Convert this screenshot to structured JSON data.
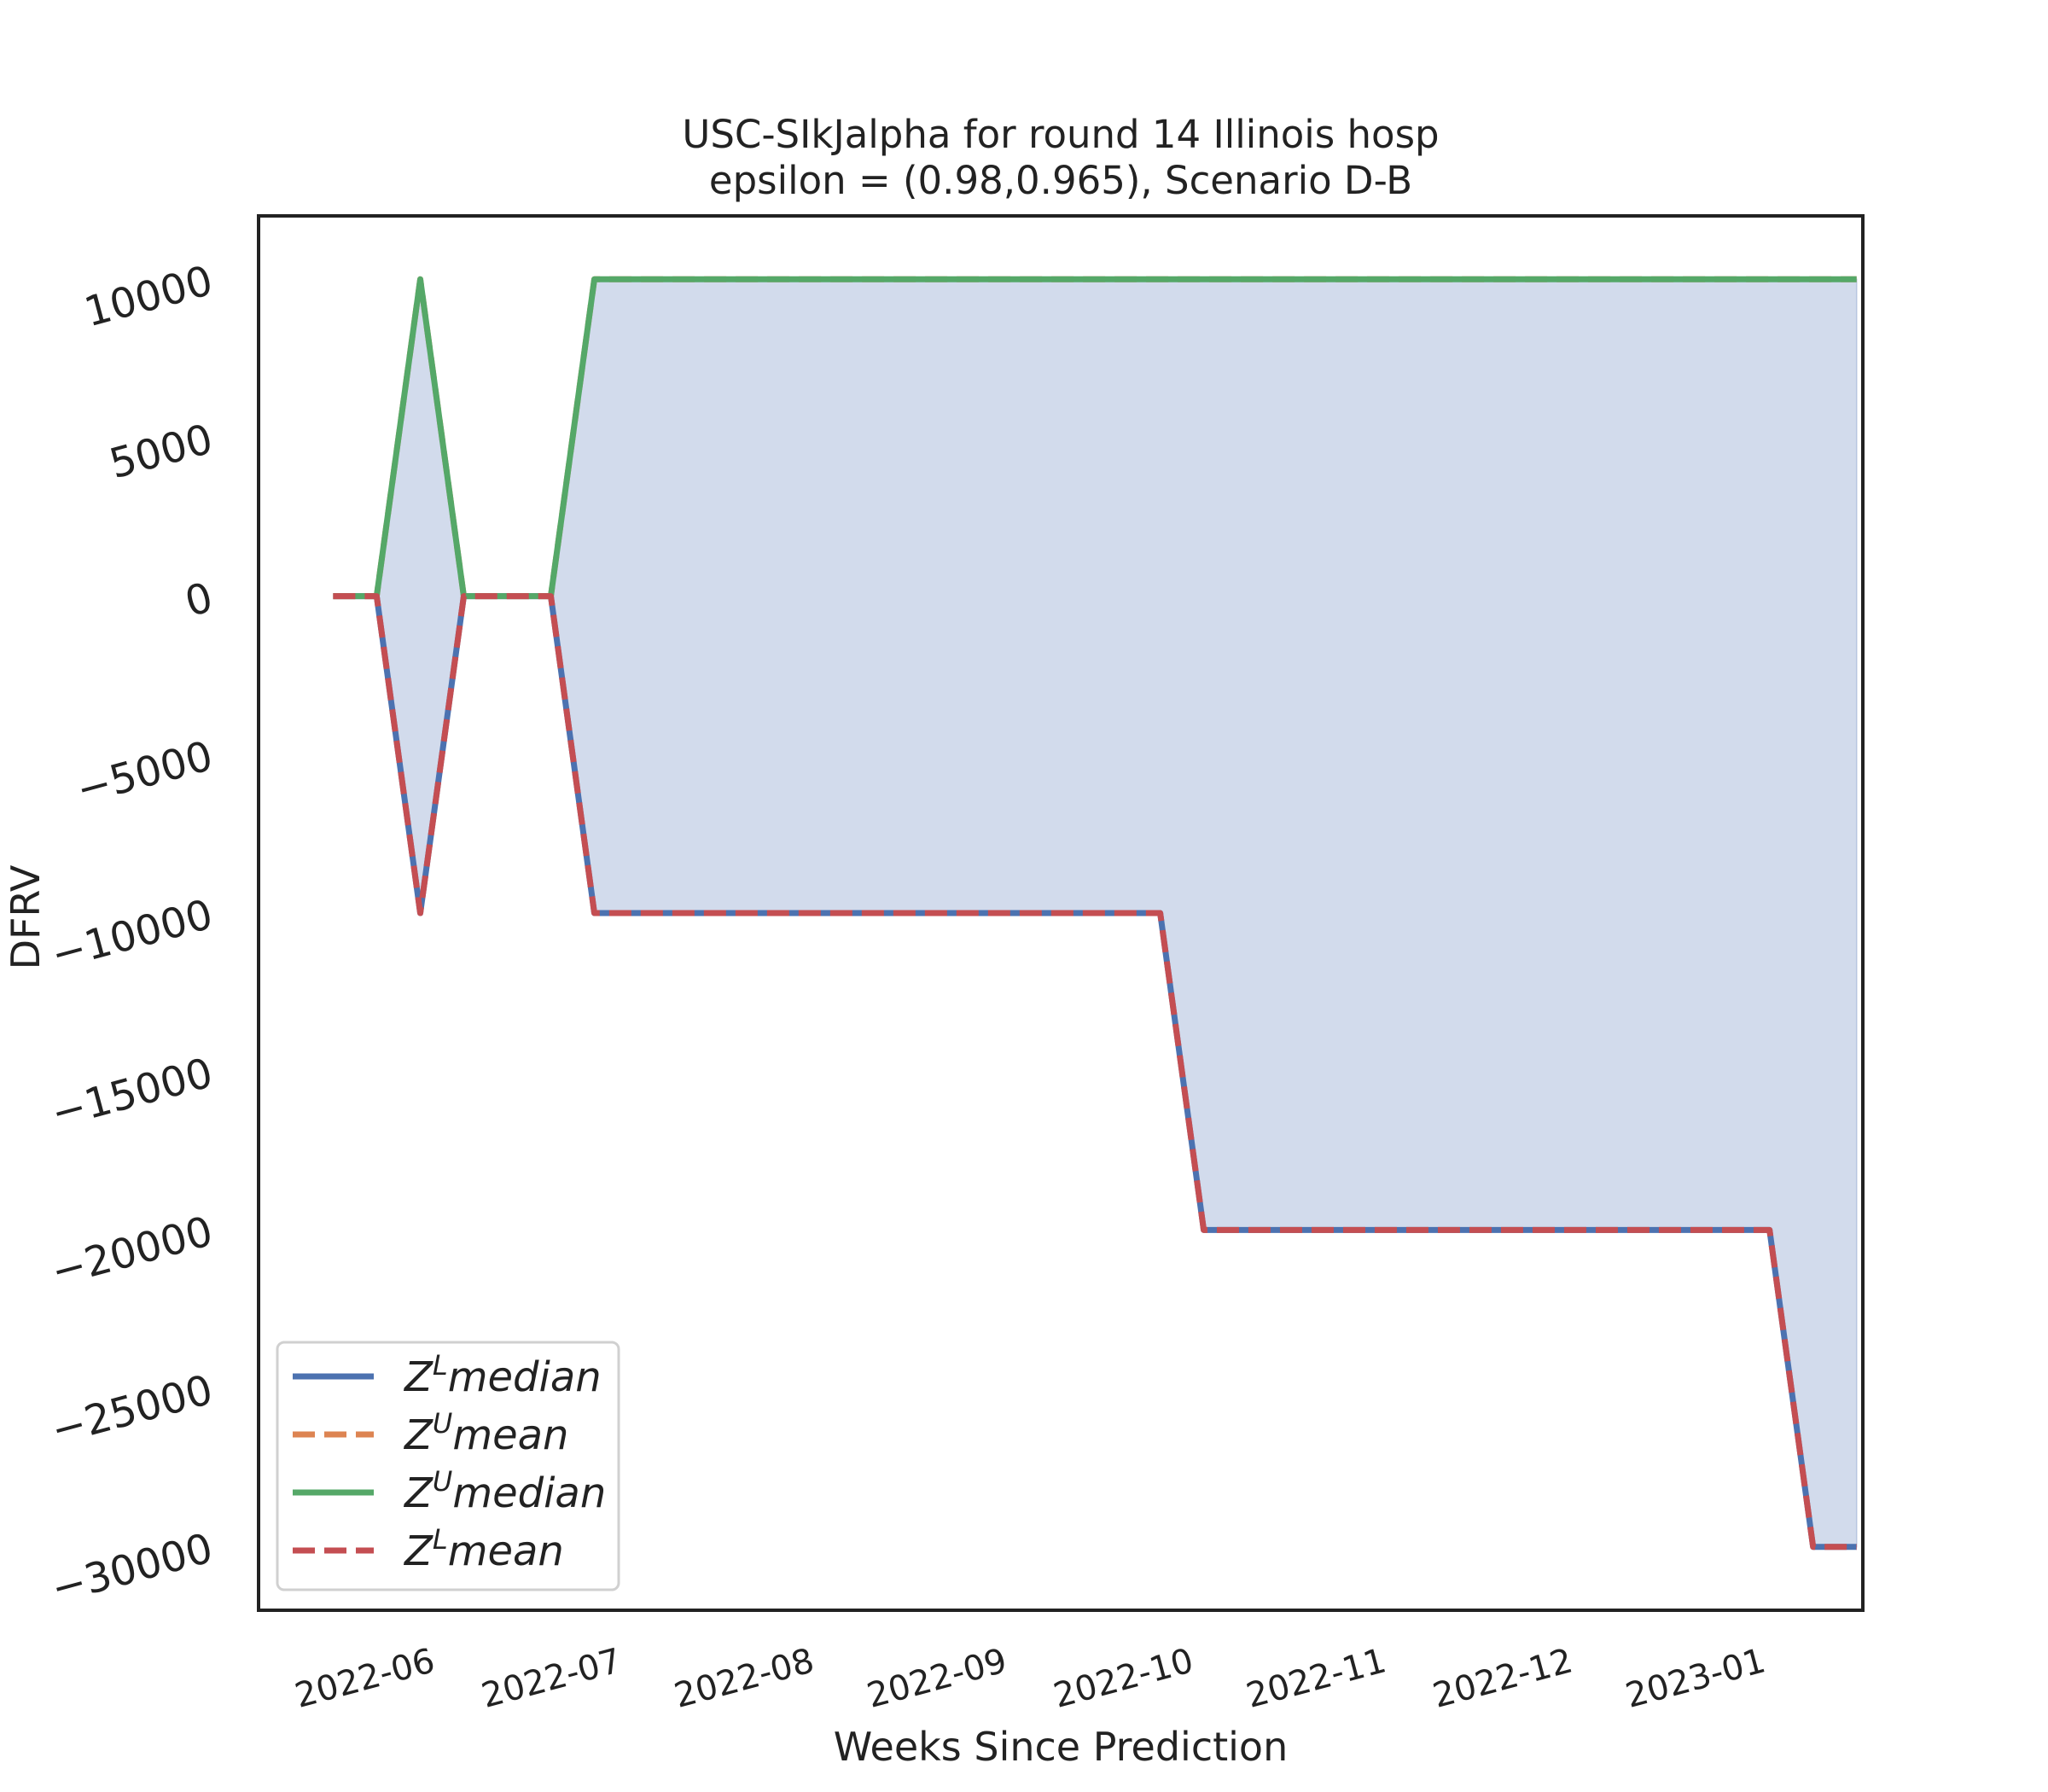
{
  "chart_data": {
    "type": "line",
    "title": "USC-SIkJalpha for round 14 Illinois  hosp",
    "subtitle": "epsilon = (0.98,0.965), Scenario D-B",
    "xlabel": "Weeks Since Prediction",
    "ylabel": "DFRV",
    "xlim": [
      "2022-05-05",
      "2023-01-18"
    ],
    "ylim": [
      -32000,
      12000
    ],
    "grid": false,
    "legend_position": "lower-left",
    "y_ticks": [
      {
        "value": 10000,
        "label": "10000"
      },
      {
        "value": 5000,
        "label": "5000"
      },
      {
        "value": 0,
        "label": "0"
      },
      {
        "value": -5000,
        "label": "−5000"
      },
      {
        "value": -10000,
        "label": "−10000"
      },
      {
        "value": -15000,
        "label": "−15000"
      },
      {
        "value": -20000,
        "label": "−20000"
      },
      {
        "value": -25000,
        "label": "−25000"
      },
      {
        "value": -30000,
        "label": "−30000"
      }
    ],
    "x_ticks": [
      {
        "value": "2022-06-01",
        "label": "2022-06"
      },
      {
        "value": "2022-07-01",
        "label": "2022-07"
      },
      {
        "value": "2022-08-01",
        "label": "2022-08"
      },
      {
        "value": "2022-09-01",
        "label": "2022-09"
      },
      {
        "value": "2022-10-01",
        "label": "2022-10"
      },
      {
        "value": "2022-11-01",
        "label": "2022-11"
      },
      {
        "value": "2022-12-01",
        "label": "2022-12"
      },
      {
        "value": "2023-01-01",
        "label": "2023-01"
      }
    ],
    "x": [
      "2022-05-17",
      "2022-05-24",
      "2022-05-31",
      "2022-06-07",
      "2022-06-14",
      "2022-06-21",
      "2022-06-28",
      "2022-07-05",
      "2022-07-12",
      "2022-07-19",
      "2022-07-26",
      "2022-08-02",
      "2022-08-09",
      "2022-08-16",
      "2022-08-23",
      "2022-08-30",
      "2022-09-06",
      "2022-09-13",
      "2022-09-20",
      "2022-09-27",
      "2022-10-04",
      "2022-10-11",
      "2022-10-18",
      "2022-10-25",
      "2022-11-01",
      "2022-11-08",
      "2022-11-15",
      "2022-11-22",
      "2022-11-29",
      "2022-12-06",
      "2022-12-13",
      "2022-12-20",
      "2022-12-27",
      "2023-01-03",
      "2023-01-10",
      "2023-01-17"
    ],
    "band_fill": "#d2dbec",
    "series": [
      {
        "name": "Z^L median",
        "legend": {
          "base": "Z",
          "sup": "L",
          "rest": "median"
        },
        "color": "#4c72b0",
        "dash": "solid",
        "values": [
          0,
          0,
          -10000,
          0,
          0,
          0,
          -10000,
          -10000,
          -10000,
          -10000,
          -10000,
          -10000,
          -10000,
          -10000,
          -10000,
          -10000,
          -10000,
          -10000,
          -10000,
          -10000,
          -20000,
          -20000,
          -20000,
          -20000,
          -20000,
          -20000,
          -20000,
          -20000,
          -20000,
          -20000,
          -20000,
          -20000,
          -20000,
          -20000,
          -30000,
          -30000
        ]
      },
      {
        "name": "Z^U mean",
        "legend": {
          "base": "Z",
          "sup": "U",
          "rest": "mean"
        },
        "color": "#dd8452",
        "dash": "dashed",
        "values": [
          0,
          0,
          10000,
          0,
          0,
          0,
          10000,
          10000,
          10000,
          10000,
          10000,
          10000,
          10000,
          10000,
          10000,
          10000,
          10000,
          10000,
          10000,
          10000,
          10000,
          10000,
          10000,
          10000,
          10000,
          10000,
          10000,
          10000,
          10000,
          10000,
          10000,
          10000,
          10000,
          10000,
          10000,
          10000
        ]
      },
      {
        "name": "Z^U median",
        "legend": {
          "base": "Z",
          "sup": "U",
          "rest": "median"
        },
        "color": "#55a868",
        "dash": "solid",
        "values": [
          0,
          0,
          10000,
          0,
          0,
          0,
          10000,
          10000,
          10000,
          10000,
          10000,
          10000,
          10000,
          10000,
          10000,
          10000,
          10000,
          10000,
          10000,
          10000,
          10000,
          10000,
          10000,
          10000,
          10000,
          10000,
          10000,
          10000,
          10000,
          10000,
          10000,
          10000,
          10000,
          10000,
          10000,
          10000
        ]
      },
      {
        "name": "Z^L mean",
        "legend": {
          "base": "Z",
          "sup": "L",
          "rest": "mean"
        },
        "color": "#c44e52",
        "dash": "dashed",
        "values": [
          0,
          0,
          -10000,
          0,
          0,
          0,
          -10000,
          -10000,
          -10000,
          -10000,
          -10000,
          -10000,
          -10000,
          -10000,
          -10000,
          -10000,
          -10000,
          -10000,
          -10000,
          -10000,
          -20000,
          -20000,
          -20000,
          -20000,
          -20000,
          -20000,
          -20000,
          -20000,
          -20000,
          -20000,
          -20000,
          -20000,
          -20000,
          -20000,
          -30000,
          -30000
        ]
      }
    ]
  }
}
